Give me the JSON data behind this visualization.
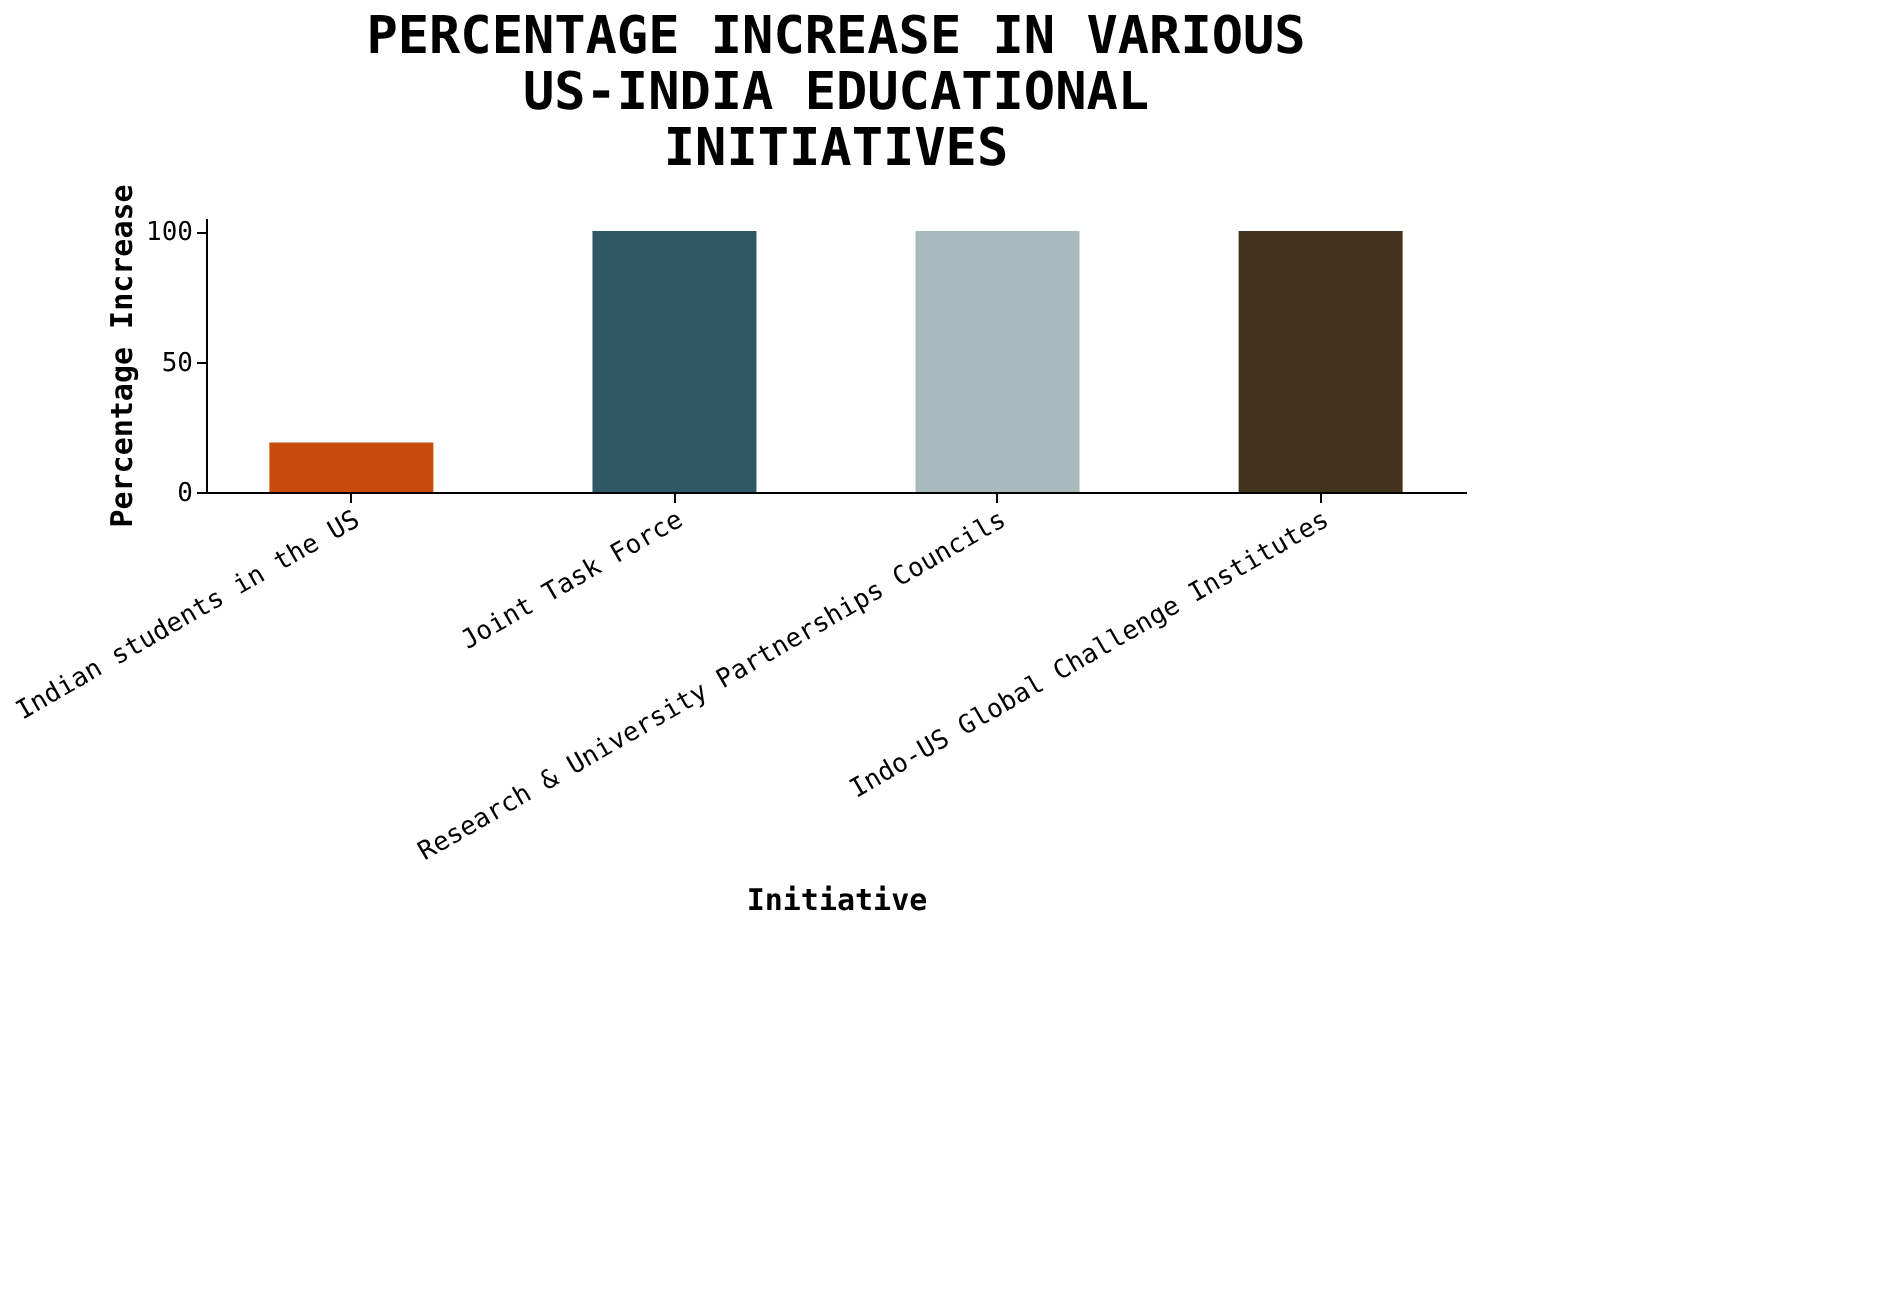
{
  "chart_data": {
    "type": "bar",
    "title": "PERCENTAGE INCREASE IN VARIOUS US-INDIA EDUCATIONAL INITIATIVES",
    "xlabel": "Initiative",
    "ylabel": "Percentage Increase",
    "categories": [
      "Indian students in the US",
      "Joint Task Force",
      "Research & University Partnerships Councils",
      "Indo-US Global Challenge Institutes"
    ],
    "values": [
      19,
      100,
      100,
      100
    ],
    "colors": [
      "#c84b0b",
      "#2f5766",
      "#a8b9bc",
      "#43331c"
    ],
    "ylim": [
      0,
      105
    ],
    "yticks": [
      0,
      50,
      100
    ],
    "grid": false,
    "legend": false
  }
}
